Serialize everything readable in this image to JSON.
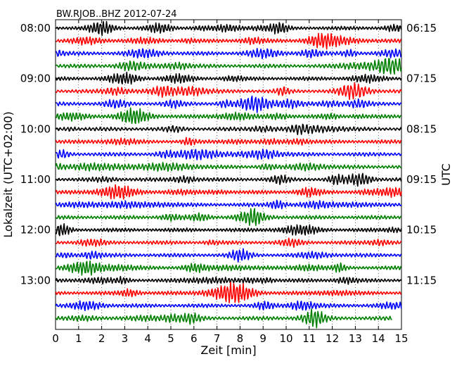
{
  "chart_data": {
    "type": "line",
    "title": "BW.RJOB..BHZ 2012-07-24",
    "xlabel": "Zeit  [min]",
    "ylabel_left": "Lokalzeit (UTC+02:00)",
    "ylabel_right": "UTC",
    "xlim": [
      0,
      15
    ],
    "x_ticks": [
      "0",
      "1",
      "2",
      "3",
      "4",
      "5",
      "6",
      "7",
      "8",
      "9",
      "10",
      "11",
      "12",
      "13",
      "14",
      "15"
    ],
    "left_hour_labels": [
      "08:00",
      "09:00",
      "10:00",
      "11:00",
      "12:00",
      "13:00"
    ],
    "right_hour_labels": [
      "06:15",
      "07:15",
      "08:15",
      "09:15",
      "10:15",
      "11:15"
    ],
    "trace_interval_min": 15,
    "traces_per_hour": 4,
    "trace_count": 24,
    "last_trace_end_min": 14.6,
    "grid": "vertical dotted at each minute",
    "trace_colors": [
      "#000000",
      "#ff0000",
      "#0000ff",
      "#008000"
    ]
  }
}
